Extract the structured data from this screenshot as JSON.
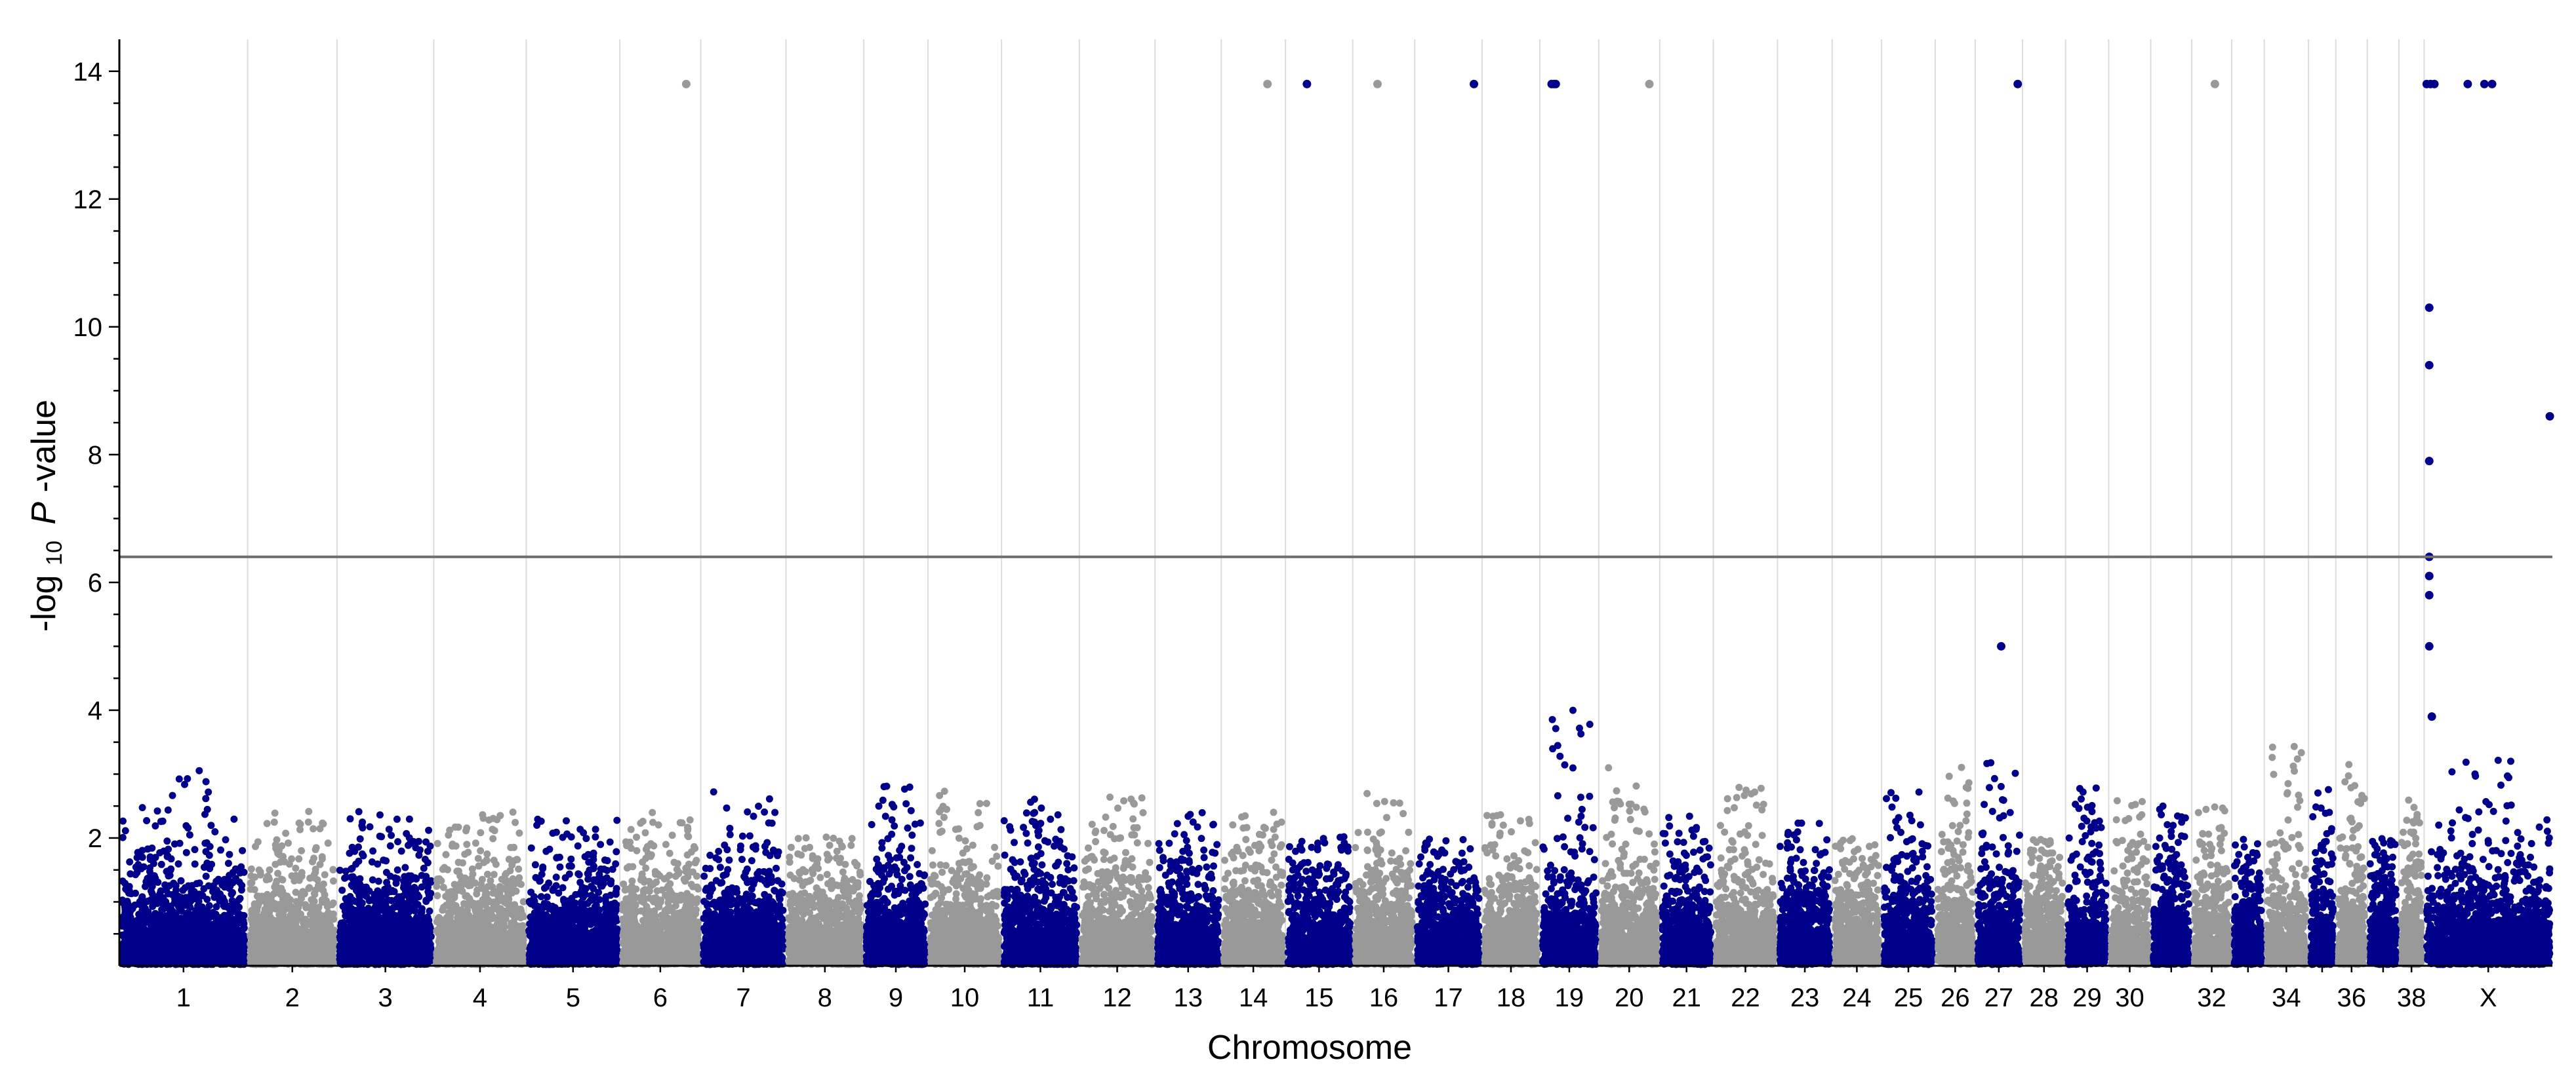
{
  "chart_data": {
    "type": "scatter",
    "subtype": "manhattan",
    "title": "",
    "xlabel": "Chromosome",
    "ylabel": {
      "prefix": "-log",
      "subscript": "10",
      "italic": "P",
      "suffix": "-value"
    },
    "ylim": [
      0,
      14.5
    ],
    "yticks": [
      2,
      4,
      6,
      8,
      10,
      12,
      14
    ],
    "significance_threshold": 6.4,
    "grid": "vertical lines at chromosome boundaries",
    "colors": {
      "odd": "#00008b",
      "even": "#999999",
      "threshold": "#707070",
      "grid": "#dcdcdc",
      "axis": "#000000"
    },
    "chromosomes": [
      {
        "name": "1",
        "label": "1",
        "size": 122
      },
      {
        "name": "2",
        "label": "2",
        "size": 85
      },
      {
        "name": "3",
        "label": "3",
        "size": 92
      },
      {
        "name": "4",
        "label": "4",
        "size": 88
      },
      {
        "name": "5",
        "label": "5",
        "size": 89
      },
      {
        "name": "6",
        "label": "6",
        "size": 77
      },
      {
        "name": "7",
        "label": "7",
        "size": 81
      },
      {
        "name": "8",
        "label": "8",
        "size": 74
      },
      {
        "name": "9",
        "label": "9",
        "size": 61
      },
      {
        "name": "10",
        "label": "10",
        "size": 70
      },
      {
        "name": "11",
        "label": "11",
        "size": 74
      },
      {
        "name": "12",
        "label": "12",
        "size": 72
      },
      {
        "name": "13",
        "label": "13",
        "size": 63
      },
      {
        "name": "14",
        "label": "14",
        "size": 61
      },
      {
        "name": "15",
        "label": "15",
        "size": 64
      },
      {
        "name": "16",
        "label": "16",
        "size": 59
      },
      {
        "name": "17",
        "label": "17",
        "size": 64
      },
      {
        "name": "18",
        "label": "18",
        "size": 55
      },
      {
        "name": "19",
        "label": "19",
        "size": 56
      },
      {
        "name": "20",
        "label": "20",
        "size": 58
      },
      {
        "name": "21",
        "label": "21",
        "size": 51
      },
      {
        "name": "22",
        "label": "22",
        "size": 61
      },
      {
        "name": "23",
        "label": "23",
        "size": 52
      },
      {
        "name": "24",
        "label": "24",
        "size": 47
      },
      {
        "name": "25",
        "label": "25",
        "size": 51
      },
      {
        "name": "26",
        "label": "26",
        "size": 38
      },
      {
        "name": "27",
        "label": "27",
        "size": 45
      },
      {
        "name": "28",
        "label": "28",
        "size": 41
      },
      {
        "name": "29",
        "label": "29",
        "size": 41
      },
      {
        "name": "30",
        "label": "30",
        "size": 40
      },
      {
        "name": "31",
        "label": "",
        "size": 39
      },
      {
        "name": "32",
        "label": "32",
        "size": 38
      },
      {
        "name": "33",
        "label": "",
        "size": 31
      },
      {
        "name": "34",
        "label": "34",
        "size": 42
      },
      {
        "name": "35",
        "label": "",
        "size": 26
      },
      {
        "name": "36",
        "label": "36",
        "size": 30
      },
      {
        "name": "37",
        "label": "",
        "size": 30
      },
      {
        "name": "38",
        "label": "38",
        "size": 24
      },
      {
        "name": "X",
        "label": "X",
        "size": 122
      }
    ],
    "background_peak_max": [
      3.1,
      2.4,
      2.4,
      2.4,
      2.4,
      2.4,
      2.8,
      2.0,
      2.9,
      2.8,
      2.6,
      2.7,
      2.4,
      2.4,
      2.0,
      2.8,
      2.0,
      2.4,
      4.0,
      3.1,
      2.4,
      2.8,
      2.4,
      2.0,
      2.9,
      3.2,
      3.2,
      2.0,
      2.8,
      2.6,
      2.5,
      2.5,
      2.0,
      3.5,
      2.8,
      3.2,
      2.0,
      2.6,
      3.3
    ],
    "highlighted_points": [
      {
        "chr": "6",
        "pos": 0.82,
        "value": 13.8
      },
      {
        "chr": "14",
        "pos": 0.72,
        "value": 13.8
      },
      {
        "chr": "15",
        "pos": 0.32,
        "value": 13.8
      },
      {
        "chr": "16",
        "pos": 0.4,
        "value": 13.8
      },
      {
        "chr": "17",
        "pos": 0.88,
        "value": 13.8
      },
      {
        "chr": "19",
        "pos": 0.2,
        "value": 13.8
      },
      {
        "chr": "19",
        "pos": 0.24,
        "value": 13.8
      },
      {
        "chr": "19",
        "pos": 0.27,
        "value": 13.8
      },
      {
        "chr": "20",
        "pos": 0.83,
        "value": 13.8
      },
      {
        "chr": "27",
        "pos": 0.9,
        "value": 13.8
      },
      {
        "chr": "32",
        "pos": 0.58,
        "value": 13.8
      },
      {
        "chr": "27",
        "pos": 0.55,
        "value": 5.0
      },
      {
        "chr": "X",
        "pos": 0.02,
        "value": 13.8
      },
      {
        "chr": "X",
        "pos": 0.05,
        "value": 13.8
      },
      {
        "chr": "X",
        "pos": 0.08,
        "value": 13.8
      },
      {
        "chr": "X",
        "pos": 0.34,
        "value": 13.8
      },
      {
        "chr": "X",
        "pos": 0.47,
        "value": 13.8
      },
      {
        "chr": "X",
        "pos": 0.53,
        "value": 13.8
      },
      {
        "chr": "X",
        "pos": 0.04,
        "value": 10.3
      },
      {
        "chr": "X",
        "pos": 0.04,
        "value": 9.4
      },
      {
        "chr": "X",
        "pos": 0.04,
        "value": 7.9
      },
      {
        "chr": "X",
        "pos": 0.04,
        "value": 6.4
      },
      {
        "chr": "X",
        "pos": 0.04,
        "value": 6.1
      },
      {
        "chr": "X",
        "pos": 0.04,
        "value": 5.8
      },
      {
        "chr": "X",
        "pos": 0.04,
        "value": 5.0
      },
      {
        "chr": "X",
        "pos": 0.06,
        "value": 3.9
      },
      {
        "chr": "X",
        "pos": 0.98,
        "value": 8.6
      }
    ]
  }
}
